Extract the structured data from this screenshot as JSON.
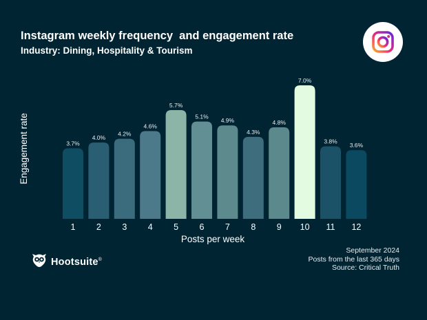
{
  "header": {
    "title": "Instagram weekly frequency  and engagement rate",
    "subtitle": "Industry: Dining, Hospitality & Tourism"
  },
  "icons": {
    "social": "instagram-logo-icon",
    "brand": "hootsuite-owl-logo-icon"
  },
  "footnotes": {
    "date": "September 2024",
    "range": "Posts from the last 365 days",
    "source": "Source: Critical Truth"
  },
  "brand": {
    "name": "Hootsuite",
    "mark": "®"
  },
  "colors": {
    "background": "#012433",
    "highlight": "#e3fbe0"
  },
  "chart_data": {
    "type": "bar",
    "xlabel": "Posts per week",
    "ylabel": "Engagement rate",
    "categories": [
      "1",
      "2",
      "3",
      "4",
      "5",
      "6",
      "7",
      "8",
      "9",
      "10",
      "11",
      "12"
    ],
    "values": [
      3.7,
      4.0,
      4.2,
      4.6,
      5.7,
      5.1,
      4.9,
      4.3,
      4.8,
      7.0,
      3.8,
      3.6
    ],
    "labels": [
      "3.7%",
      "4.0%",
      "4.2%",
      "4.6%",
      "5.7%",
      "5.1%",
      "4.9%",
      "4.3%",
      "4.8%",
      "7.0%",
      "3.8%",
      "3.6%"
    ],
    "bar_colors": [
      "#0f4d63",
      "#2a5e73",
      "#3b6c7d",
      "#4d7a8a",
      "#8db5a7",
      "#628f93",
      "#5d8a8d",
      "#3e6e7e",
      "#5c8a8c",
      "#e3fbe0",
      "#1b5268",
      "#0a4960"
    ],
    "grid": false,
    "legend": "none"
  }
}
